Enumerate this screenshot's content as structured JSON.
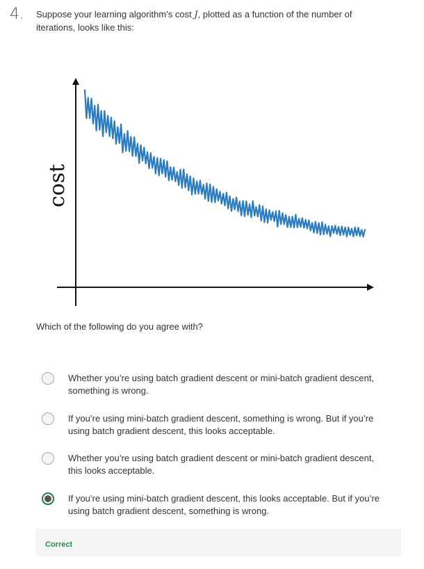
{
  "question": {
    "number": "4.",
    "text_before": "Suppose your learning algorithm’s cost ",
    "math_symbol": "J",
    "text_after": ", plotted as a function of the number of iterations, looks like this:"
  },
  "chart_data": {
    "type": "line",
    "ylabel": "cost",
    "xlabel": "",
    "title": "",
    "grid": false,
    "legend": "none",
    "colors": {
      "series": "#2b7bc1",
      "axes": "#111111"
    },
    "note_units": "arbitrary (no tick labels shown)",
    "x": [
      0,
      0.03,
      0.06,
      0.09,
      0.12,
      0.15,
      0.18,
      0.21,
      0.24,
      0.27,
      0.3,
      0.33,
      0.36,
      0.39,
      0.42,
      0.45,
      0.48,
      0.51,
      0.54,
      0.57,
      0.6,
      0.63,
      0.66,
      0.69,
      0.72,
      0.75,
      0.78,
      0.81,
      0.84,
      0.87,
      0.9,
      0.93,
      0.96,
      1.0
    ],
    "series": [
      {
        "trend": [
          0.95,
          0.9,
          0.85,
          0.81,
          0.77,
          0.73,
          0.7,
          0.66,
          0.63,
          0.6,
          0.57,
          0.54,
          0.52,
          0.49,
          0.47,
          0.45,
          0.43,
          0.41,
          0.39,
          0.37,
          0.36,
          0.34,
          0.33,
          0.31,
          0.3,
          0.29,
          0.28,
          0.27,
          0.26,
          0.25,
          0.25,
          0.24,
          0.24,
          0.23
        ],
        "noise_amplitude": [
          0.1,
          0.09,
          0.09,
          0.08,
          0.08,
          0.07,
          0.07,
          0.06,
          0.06,
          0.06,
          0.06,
          0.06,
          0.06,
          0.06,
          0.05,
          0.05,
          0.05,
          0.05,
          0.05,
          0.05,
          0.05,
          0.05,
          0.05,
          0.05,
          0.05,
          0.05,
          0.04,
          0.04,
          0.04,
          0.04,
          0.04,
          0.03,
          0.03,
          0.02
        ]
      }
    ]
  },
  "prompt": "Which of the following do you agree with?",
  "options": [
    {
      "label": "Whether you’re using batch gradient descent or mini-batch gradient descent, something is wrong.",
      "selected": false
    },
    {
      "label": "If you’re using mini-batch gradient descent, something is wrong. But if you’re using batch gradient descent, this looks acceptable.",
      "selected": false
    },
    {
      "label": "Whether you’re using batch gradient descent or mini-batch gradient descent, this looks acceptable.",
      "selected": false
    },
    {
      "label": "If you’re using mini-batch gradient descent, this looks acceptable. But if you’re using batch gradient descent, something is wrong.",
      "selected": true
    }
  ],
  "feedback": {
    "status": "Correct",
    "status_color": "#2a8c4a"
  }
}
